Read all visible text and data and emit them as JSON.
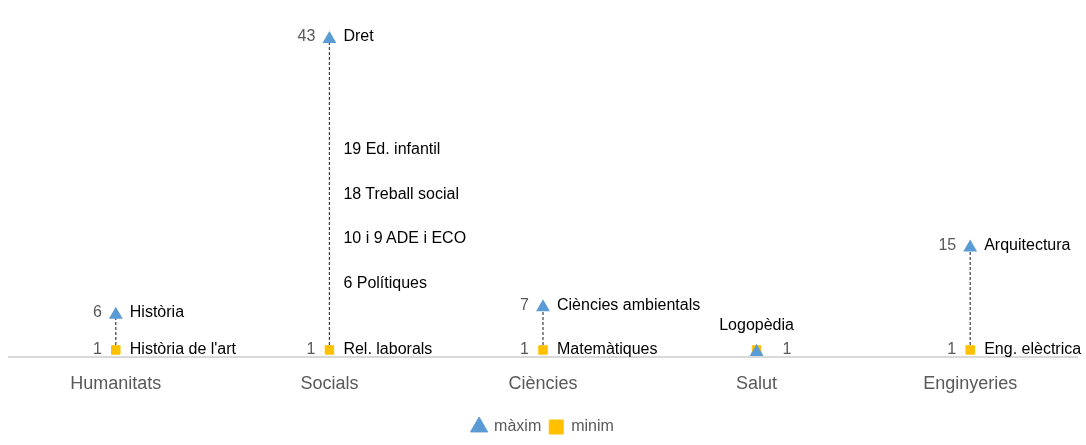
{
  "chart_data": {
    "type": "scatter",
    "categories": [
      "Humanitats",
      "Socials",
      "Ciències",
      "Salut",
      "Enginyeries"
    ],
    "series": [
      {
        "name": "minim",
        "color": "#ffc000",
        "marker": "square",
        "values": [
          1,
          1,
          1,
          1,
          1
        ],
        "value_labels": [
          "1",
          "1",
          "1",
          "1",
          "1"
        ]
      },
      {
        "name": "màxim",
        "color": "#5b9bd5",
        "marker": "triangle",
        "values": [
          6,
          43,
          7,
          1,
          15
        ],
        "value_labels": [
          "6",
          "43",
          "7",
          null,
          "15"
        ]
      }
    ],
    "tick_labels": "x",
    "legend": "bottom",
    "annotations": [
      {
        "text": "Història de l'art",
        "x": "Humanitats",
        "y": 1
      },
      {
        "text": "Història",
        "x": "Humanitats",
        "y": 6
      },
      {
        "text": "Rel. laborals",
        "x": "Socials",
        "y": 1
      },
      {
        "text": "Dret",
        "x": "Socials",
        "y": 43
      },
      "19 Ed. infantil",
      "18 Treball social",
      "10 i 9 ADE i ECO",
      "6 Polítiques",
      {
        "text": "Matemàtiques",
        "x": "Ciències",
        "y": 1
      },
      {
        "text": "Ciències ambientals",
        "x": "Ciències",
        "y": 7
      },
      {
        "text": "Logopèdia",
        "x": "Salut",
        "y": 1
      },
      {
        "text": "Eng. elèctrica",
        "x": "Enginyeries",
        "y": 1
      },
      {
        "text": "Arquitectura",
        "x": "Enginyeries",
        "y": 15
      }
    ]
  }
}
